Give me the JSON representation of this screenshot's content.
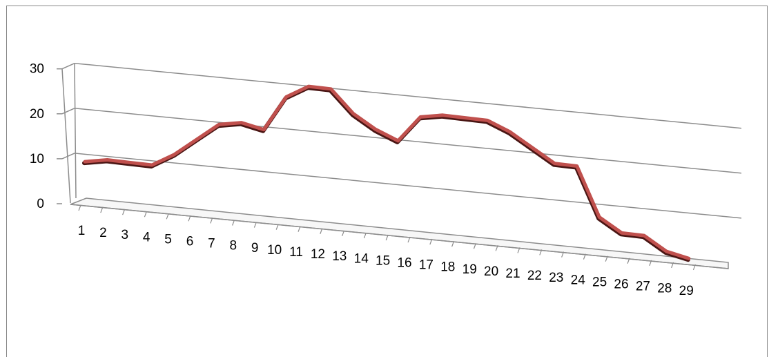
{
  "chart_data": {
    "type": "line",
    "title": "",
    "xlabel": "",
    "ylabel": "",
    "categories": [
      "1",
      "2",
      "3",
      "4",
      "5",
      "6",
      "7",
      "8",
      "9",
      "10",
      "11",
      "12",
      "13",
      "14",
      "15",
      "16",
      "17",
      "18",
      "19",
      "20",
      "21",
      "22",
      "23",
      "24",
      "25",
      "26",
      "27",
      "28",
      "29"
    ],
    "y_ticks": [
      "0",
      "10",
      "20",
      "30"
    ],
    "ylim": [
      0,
      30
    ],
    "grid": true,
    "legend": "none",
    "series": [
      {
        "values": [
          5,
          6,
          6,
          6,
          9,
          13,
          17,
          18,
          17,
          25,
          28,
          28,
          23,
          20,
          18,
          24,
          25,
          25,
          25,
          23,
          20,
          17,
          17,
          6,
          3,
          3,
          0,
          -1,
          null
        ],
        "color": "#c0504d"
      }
    ],
    "colors": {
      "line": "#c0504d",
      "line_shadow": "#4a1614",
      "grid": "#8c8c8c",
      "frame": "#868686"
    }
  }
}
